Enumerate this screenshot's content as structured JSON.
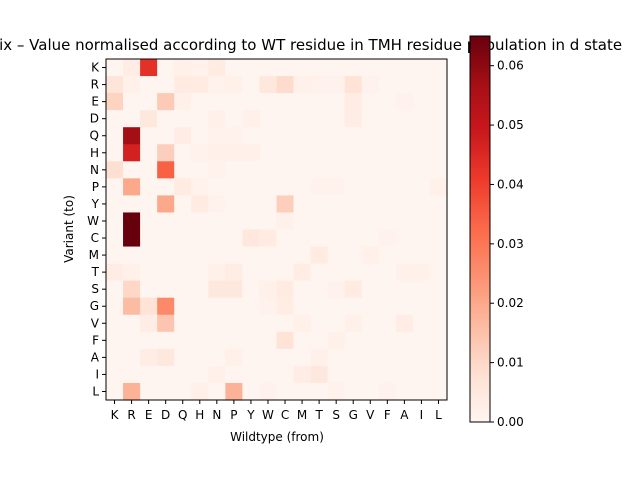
{
  "chart_data": {
    "type": "heatmap",
    "title": "Substitution matrix – Value normalised according to WT residue in TMH residue population in d state",
    "xlabel": "Wildtype (from)",
    "ylabel": "Variant (to)",
    "x_categories": [
      "K",
      "R",
      "E",
      "D",
      "Q",
      "H",
      "N",
      "P",
      "Y",
      "W",
      "C",
      "M",
      "T",
      "S",
      "G",
      "V",
      "F",
      "A",
      "I",
      "L"
    ],
    "y_categories": [
      "K",
      "R",
      "E",
      "D",
      "Q",
      "H",
      "N",
      "P",
      "Y",
      "W",
      "C",
      "M",
      "T",
      "S",
      "G",
      "V",
      "F",
      "A",
      "I",
      "L"
    ],
    "colorbar": {
      "min": 0,
      "max": 0.065,
      "ticks": [
        0.0,
        0.01,
        0.02,
        0.03,
        0.04,
        0.05,
        0.06
      ],
      "tick_labels": [
        "0.00",
        "0.01",
        "0.02",
        "0.03",
        "0.04",
        "0.05",
        "0.06"
      ],
      "colormap": "Reds"
    },
    "values": [
      [
        0.0,
        0.003,
        0.043,
        0.0,
        0.002,
        0.001,
        0.004,
        0.0,
        0.0,
        0.0,
        0.0,
        0.0,
        0.0,
        0.0,
        0.0,
        0.0,
        0.0,
        0.0,
        0.0,
        0.0
      ],
      [
        0.006,
        0.002,
        0.0,
        0.0,
        0.004,
        0.004,
        0.001,
        0.002,
        0.0,
        0.005,
        0.009,
        0.002,
        0.001,
        0.001,
        0.007,
        0.001,
        0.0,
        0.0,
        0.0,
        0.0
      ],
      [
        0.011,
        0.0,
        0.0,
        0.013,
        0.002,
        0.0,
        0.0,
        0.0,
        0.0,
        0.0,
        0.0,
        0.0,
        0.0,
        0.0,
        0.003,
        0.0,
        0.0,
        0.001,
        0.0,
        0.0
      ],
      [
        0.0,
        0.0,
        0.005,
        0.0,
        0.0,
        0.0,
        0.002,
        0.0,
        0.002,
        0.0,
        0.0,
        0.0,
        0.0,
        0.0,
        0.003,
        0.0,
        0.0,
        0.0,
        0.0,
        0.0
      ],
      [
        0.0,
        0.057,
        0.0,
        0.0,
        0.003,
        0.0,
        0.001,
        0.001,
        0.0,
        0.0,
        0.0,
        0.0,
        0.0,
        0.0,
        0.0,
        0.0,
        0.0,
        0.0,
        0.0,
        0.0
      ],
      [
        0.0,
        0.047,
        0.0,
        0.012,
        0.0,
        0.001,
        0.002,
        0.002,
        0.002,
        0.0,
        0.0,
        0.0,
        0.0,
        0.0,
        0.0,
        0.0,
        0.0,
        0.0,
        0.0,
        0.0
      ],
      [
        0.008,
        0.0,
        0.0,
        0.034,
        0.0,
        0.0,
        0.001,
        0.0,
        0.0,
        0.0,
        0.0,
        0.0,
        0.0,
        0.0,
        0.0,
        0.0,
        0.0,
        0.0,
        0.0,
        0.0
      ],
      [
        0.0,
        0.02,
        0.0,
        0.0,
        0.004,
        0.001,
        0.0,
        0.0,
        0.0,
        0.0,
        0.0,
        0.0,
        0.001,
        0.001,
        0.0,
        0.0,
        0.0,
        0.0,
        0.0,
        0.002
      ],
      [
        0.0,
        0.0,
        0.0,
        0.02,
        0.0,
        0.004,
        0.001,
        0.0,
        0.0,
        0.0,
        0.012,
        0.0,
        0.0,
        0.0,
        0.0,
        0.0,
        0.0,
        0.0,
        0.0,
        0.0
      ],
      [
        0.0,
        0.065,
        0.0,
        0.0,
        0.0,
        0.0,
        0.0,
        0.0,
        0.0,
        0.0,
        0.002,
        0.0,
        0.0,
        0.0,
        0.0,
        0.0,
        0.0,
        0.0,
        0.0,
        0.0
      ],
      [
        0.0,
        0.065,
        0.0,
        0.0,
        0.0,
        0.0,
        0.0,
        0.0,
        0.005,
        0.004,
        0.0,
        0.0,
        0.0,
        0.0,
        0.0,
        0.0,
        0.001,
        0.0,
        0.0,
        0.0
      ],
      [
        0.0,
        0.0,
        0.0,
        0.0,
        0.0,
        0.0,
        0.0,
        0.0,
        0.0,
        0.0,
        0.0,
        0.0,
        0.004,
        0.0,
        0.0,
        0.002,
        0.0,
        0.0,
        0.0,
        0.0
      ],
      [
        0.003,
        0.002,
        0.0,
        0.0,
        0.0,
        0.0,
        0.002,
        0.003,
        0.0,
        0.0,
        0.0,
        0.003,
        0.0,
        0.0,
        0.0,
        0.0,
        0.0,
        0.002,
        0.002,
        0.0
      ],
      [
        0.0,
        0.01,
        0.0,
        0.0,
        0.0,
        0.0,
        0.005,
        0.005,
        0.0,
        0.002,
        0.004,
        0.0,
        0.0,
        0.001,
        0.004,
        0.0,
        0.0,
        0.0,
        0.0,
        0.0
      ],
      [
        0.0,
        0.016,
        0.007,
        0.026,
        0.0,
        0.0,
        0.0,
        0.0,
        0.0,
        0.001,
        0.003,
        0.0,
        0.0,
        0.0,
        0.0,
        0.0,
        0.0,
        0.0,
        0.0,
        0.0
      ],
      [
        0.0,
        0.0,
        0.003,
        0.014,
        0.0,
        0.0,
        0.0,
        0.0,
        0.0,
        0.0,
        0.0,
        0.002,
        0.0,
        0.0,
        0.002,
        0.0,
        0.0,
        0.003,
        0.0,
        0.0
      ],
      [
        0.0,
        0.0,
        0.0,
        0.0,
        0.0,
        0.0,
        0.0,
        0.0,
        0.0,
        0.0,
        0.007,
        0.0,
        0.0,
        0.002,
        0.0,
        0.0,
        0.0,
        0.0,
        0.0,
        0.0
      ],
      [
        0.0,
        0.0,
        0.003,
        0.005,
        0.0,
        0.0,
        0.0,
        0.002,
        0.0,
        0.0,
        0.0,
        0.0,
        0.002,
        0.0,
        0.0,
        0.0,
        0.0,
        0.0,
        0.0,
        0.0
      ],
      [
        0.0,
        0.0,
        0.0,
        0.0,
        0.0,
        0.0,
        0.002,
        0.0,
        0.0,
        0.0,
        0.0,
        0.003,
        0.005,
        0.0,
        0.0,
        0.0,
        0.0,
        0.0,
        0.0,
        0.0
      ],
      [
        0.0,
        0.018,
        0.0,
        0.0,
        0.0,
        0.002,
        0.0,
        0.018,
        0.0,
        0.001,
        0.0,
        0.0,
        0.0,
        0.001,
        0.0,
        0.0,
        0.001,
        0.0,
        0.0,
        0.0
      ]
    ]
  }
}
